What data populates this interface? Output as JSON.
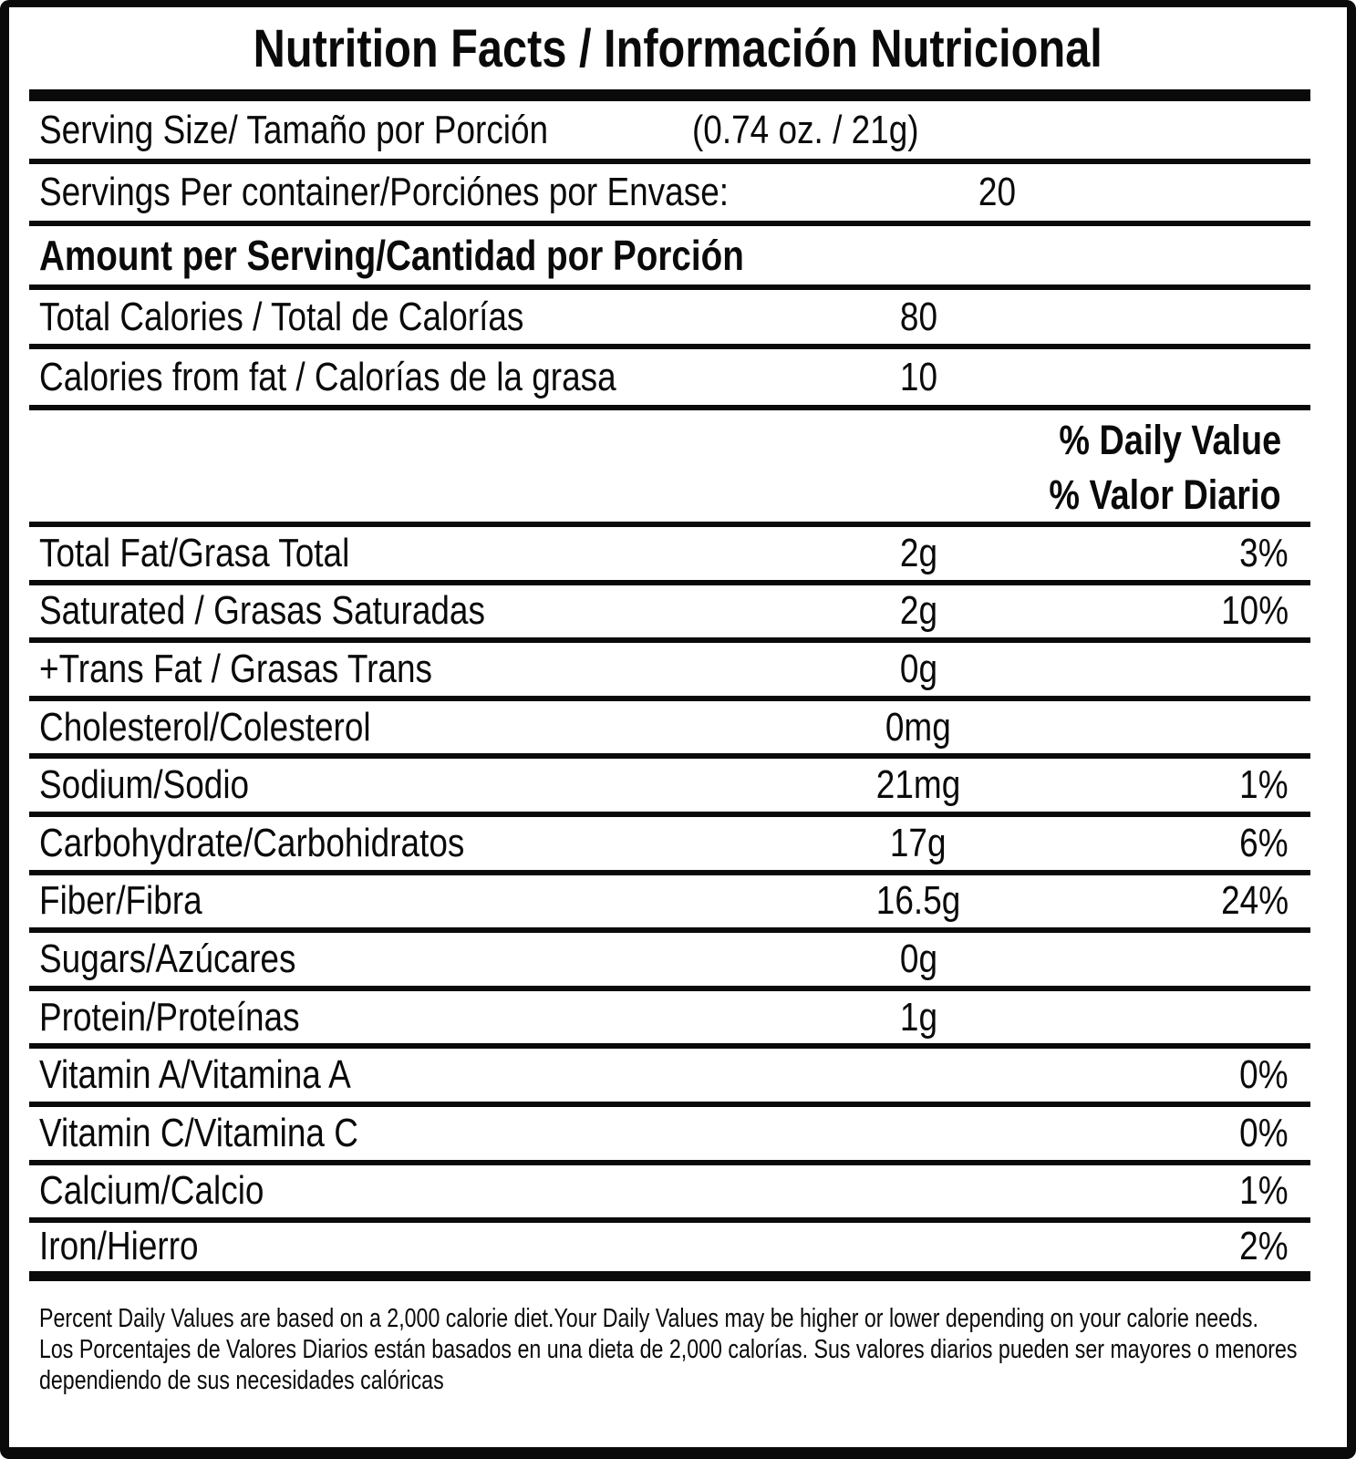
{
  "title": "Nutrition Facts / Información Nutricional",
  "serving_size": {
    "label": "Serving Size/ Tamaño por Porción",
    "value": "(0.74 oz. / 21g)"
  },
  "servings_per_container": {
    "label": "Servings Per container/Porciónes por Envase:",
    "value": "20"
  },
  "amount_header": "Amount per Serving/Cantidad por Porción",
  "calories": [
    {
      "label": "Total Calories / Total de Calorías",
      "value": "80"
    },
    {
      "label": "Calories from fat / Calorías de la grasa",
      "value": "10"
    }
  ],
  "daily_value_header": {
    "en": "% Daily Value",
    "es": "% Valor Diario"
  },
  "nutrients": [
    {
      "label": "Total Fat/Grasa Total",
      "value": "2g",
      "dv": "3%"
    },
    {
      "label": "Saturated / Grasas Saturadas",
      "value": "2g",
      "dv": "10%"
    },
    {
      "label": "+Trans Fat / Grasas Trans",
      "value": "0g",
      "dv": ""
    },
    {
      "label": "Cholesterol/Colesterol",
      "value": "0mg",
      "dv": ""
    },
    {
      "label": "Sodium/Sodio",
      "value": "21mg",
      "dv": "1%"
    },
    {
      "label": "Carbohydrate/Carbohidratos",
      "value": "17g",
      "dv": "6%"
    },
    {
      "label": "Fiber/Fibra",
      "value": "16.5g",
      "dv": "24%"
    },
    {
      "label": "Sugars/Azúcares",
      "value": "0g",
      "dv": ""
    },
    {
      "label": "Protein/Proteínas",
      "value": "1g",
      "dv": ""
    },
    {
      "label": "Vitamin A/Vitamina A",
      "value": "",
      "dv": "0%"
    },
    {
      "label": "Vitamin C/Vitamina C",
      "value": "",
      "dv": "0%"
    },
    {
      "label": "Calcium/Calcio",
      "value": "",
      "dv": "1%"
    },
    {
      "label": "Iron/Hierro",
      "value": "",
      "dv": "2%"
    }
  ],
  "footnote": {
    "en": "Percent Daily Values are based on a 2,000 calorie diet.Your Daily Values may be higher or lower depending on your calorie needs.",
    "es": "Los Porcentajes de Valores Diarios están basados en una dieta de 2,000 calorías. Sus valores diarios pueden ser mayores o menores dependiendo de sus necesidades calóricas"
  },
  "colors": {
    "text": "#0a0a0a",
    "background": "#ffffff"
  }
}
